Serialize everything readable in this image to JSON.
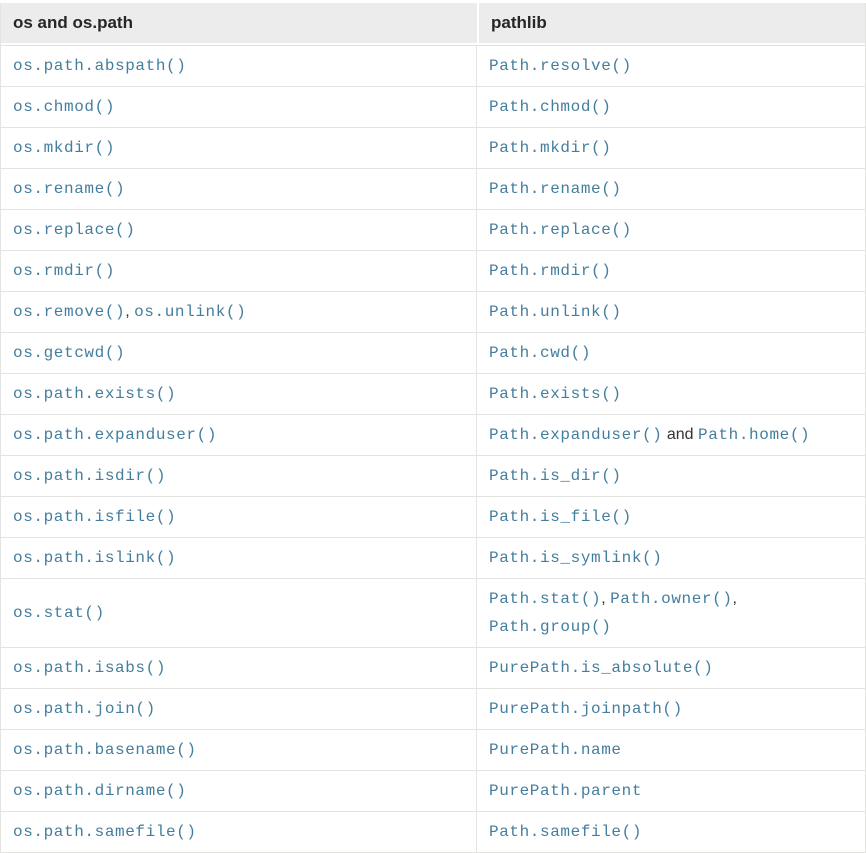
{
  "colors": {
    "code_text": "#447e9e",
    "header_bg": "#ececec",
    "header_text": "#262626",
    "plain_text": "#333333",
    "border": "#e3e3e2"
  },
  "table": {
    "headers": [
      {
        "label": "os and os.path"
      },
      {
        "label": "pathlib"
      }
    ],
    "rows": [
      {
        "left": [
          {
            "kind": "code",
            "text": "os.path.abspath()"
          }
        ],
        "right": [
          {
            "kind": "code",
            "text": "Path.resolve()"
          }
        ]
      },
      {
        "left": [
          {
            "kind": "code",
            "text": "os.chmod()"
          }
        ],
        "right": [
          {
            "kind": "code",
            "text": "Path.chmod()"
          }
        ]
      },
      {
        "left": [
          {
            "kind": "code",
            "text": "os.mkdir()"
          }
        ],
        "right": [
          {
            "kind": "code",
            "text": "Path.mkdir()"
          }
        ]
      },
      {
        "left": [
          {
            "kind": "code",
            "text": "os.rename()"
          }
        ],
        "right": [
          {
            "kind": "code",
            "text": "Path.rename()"
          }
        ]
      },
      {
        "left": [
          {
            "kind": "code",
            "text": "os.replace()"
          }
        ],
        "right": [
          {
            "kind": "code",
            "text": "Path.replace()"
          }
        ]
      },
      {
        "left": [
          {
            "kind": "code",
            "text": "os.rmdir()"
          }
        ],
        "right": [
          {
            "kind": "code",
            "text": "Path.rmdir()"
          }
        ]
      },
      {
        "left": [
          {
            "kind": "code",
            "text": "os.remove()"
          },
          {
            "kind": "plain",
            "text": ", "
          },
          {
            "kind": "code",
            "text": "os.unlink()"
          }
        ],
        "right": [
          {
            "kind": "code",
            "text": "Path.unlink()"
          }
        ]
      },
      {
        "left": [
          {
            "kind": "code",
            "text": "os.getcwd()"
          }
        ],
        "right": [
          {
            "kind": "code",
            "text": "Path.cwd()"
          }
        ]
      },
      {
        "left": [
          {
            "kind": "code",
            "text": "os.path.exists()"
          }
        ],
        "right": [
          {
            "kind": "code",
            "text": "Path.exists()"
          }
        ]
      },
      {
        "left": [
          {
            "kind": "code",
            "text": "os.path.expanduser()"
          }
        ],
        "right": [
          {
            "kind": "code",
            "text": "Path.expanduser()"
          },
          {
            "kind": "plain",
            "text": " and "
          },
          {
            "kind": "code",
            "text": "Path.home()"
          }
        ]
      },
      {
        "left": [
          {
            "kind": "code",
            "text": "os.path.isdir()"
          }
        ],
        "right": [
          {
            "kind": "code",
            "text": "Path.is_dir()"
          }
        ]
      },
      {
        "left": [
          {
            "kind": "code",
            "text": "os.path.isfile()"
          }
        ],
        "right": [
          {
            "kind": "code",
            "text": "Path.is_file()"
          }
        ]
      },
      {
        "left": [
          {
            "kind": "code",
            "text": "os.path.islink()"
          }
        ],
        "right": [
          {
            "kind": "code",
            "text": "Path.is_symlink()"
          }
        ]
      },
      {
        "left": [
          {
            "kind": "code",
            "text": "os.stat()"
          }
        ],
        "right": [
          {
            "kind": "code",
            "text": "Path.stat()"
          },
          {
            "kind": "plain",
            "text": ", "
          },
          {
            "kind": "code",
            "text": "Path.owner()"
          },
          {
            "kind": "plain",
            "text": ","
          },
          {
            "kind": "break"
          },
          {
            "kind": "code",
            "text": "Path.group()"
          }
        ]
      },
      {
        "left": [
          {
            "kind": "code",
            "text": "os.path.isabs()"
          }
        ],
        "right": [
          {
            "kind": "code",
            "text": "PurePath.is_absolute()"
          }
        ]
      },
      {
        "left": [
          {
            "kind": "code",
            "text": "os.path.join()"
          }
        ],
        "right": [
          {
            "kind": "code",
            "text": "PurePath.joinpath()"
          }
        ]
      },
      {
        "left": [
          {
            "kind": "code",
            "text": "os.path.basename()"
          }
        ],
        "right": [
          {
            "kind": "code",
            "text": "PurePath.name"
          }
        ]
      },
      {
        "left": [
          {
            "kind": "code",
            "text": "os.path.dirname()"
          }
        ],
        "right": [
          {
            "kind": "code",
            "text": "PurePath.parent"
          }
        ]
      },
      {
        "left": [
          {
            "kind": "code",
            "text": "os.path.samefile()"
          }
        ],
        "right": [
          {
            "kind": "code",
            "text": "Path.samefile()"
          }
        ]
      }
    ]
  }
}
